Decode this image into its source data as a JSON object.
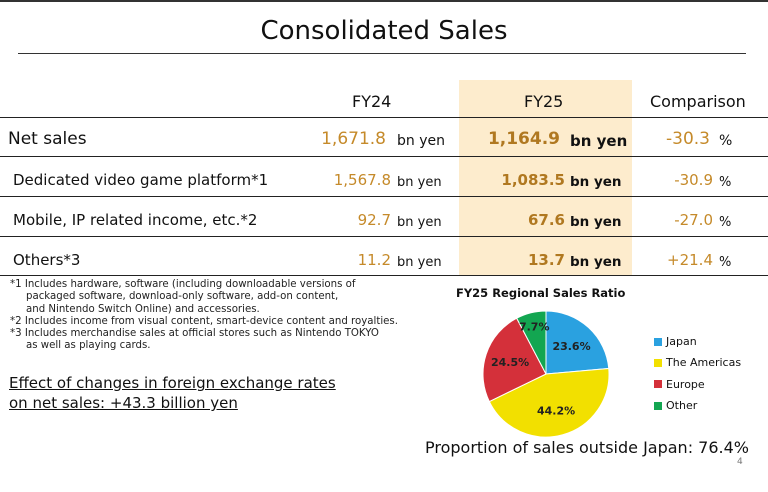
{
  "title": "Consolidated Sales",
  "headers": {
    "fy24": "FY24",
    "fy25": "FY25",
    "comparison": "Comparison"
  },
  "rows": [
    {
      "label": "Net sales",
      "fy24": "1,671.8",
      "fy24_unit": "bn yen",
      "fy25": "1,164.9",
      "fy25_unit": "bn yen",
      "change": "-30.3",
      "change_unit": "%"
    },
    {
      "label": "Dedicated video game platform*1",
      "fy24": "1,567.8",
      "fy24_unit": "bn yen",
      "fy25": "1,083.5",
      "fy25_unit": "bn yen",
      "change": "-30.9",
      "change_unit": "%"
    },
    {
      "label": "Mobile, IP related income, etc.*2",
      "fy24": "92.7",
      "fy24_unit": "bn yen",
      "fy25": "67.6",
      "fy25_unit": "bn yen",
      "change": "-27.0",
      "change_unit": "%"
    },
    {
      "label": "Others*3",
      "fy24": "11.2",
      "fy24_unit": "bn yen",
      "fy25": "13.7",
      "fy25_unit": "bn yen",
      "change": "+21.4",
      "change_unit": "%"
    }
  ],
  "notes": [
    "*1 Includes hardware, software (including downloadable versions of",
    "packaged software, download-only software, add-on content,",
    "and Nintendo Switch Online) and accessories.",
    "*2 Includes income from visual content, smart-device content and royalties.",
    "*3 Includes merchandise sales at official stores such as Nintendo TOKYO",
    "as well as playing cards."
  ],
  "fx_effect": {
    "line1": "Effect of changes in foreign exchange rates",
    "line2": "on net sales: +43.3 billion yen"
  },
  "chart_data": {
    "type": "pie",
    "title": "FY25 Regional Sales Ratio",
    "slices": [
      {
        "name": "Japan",
        "value": 23.6,
        "label": "23.6%",
        "color": "#2aa1e0"
      },
      {
        "name": "The Americas",
        "value": 44.2,
        "label": "44.2%",
        "color": "#f2e000"
      },
      {
        "name": "Europe",
        "value": 24.5,
        "label": "24.5%",
        "color": "#d4303a"
      },
      {
        "name": "Other",
        "value": 7.7,
        "label": "7.7%",
        "color": "#13a651"
      }
    ],
    "legend_position": "right"
  },
  "proportion_text": "Proportion of sales outside Japan: 76.4%",
  "page_number": "4"
}
